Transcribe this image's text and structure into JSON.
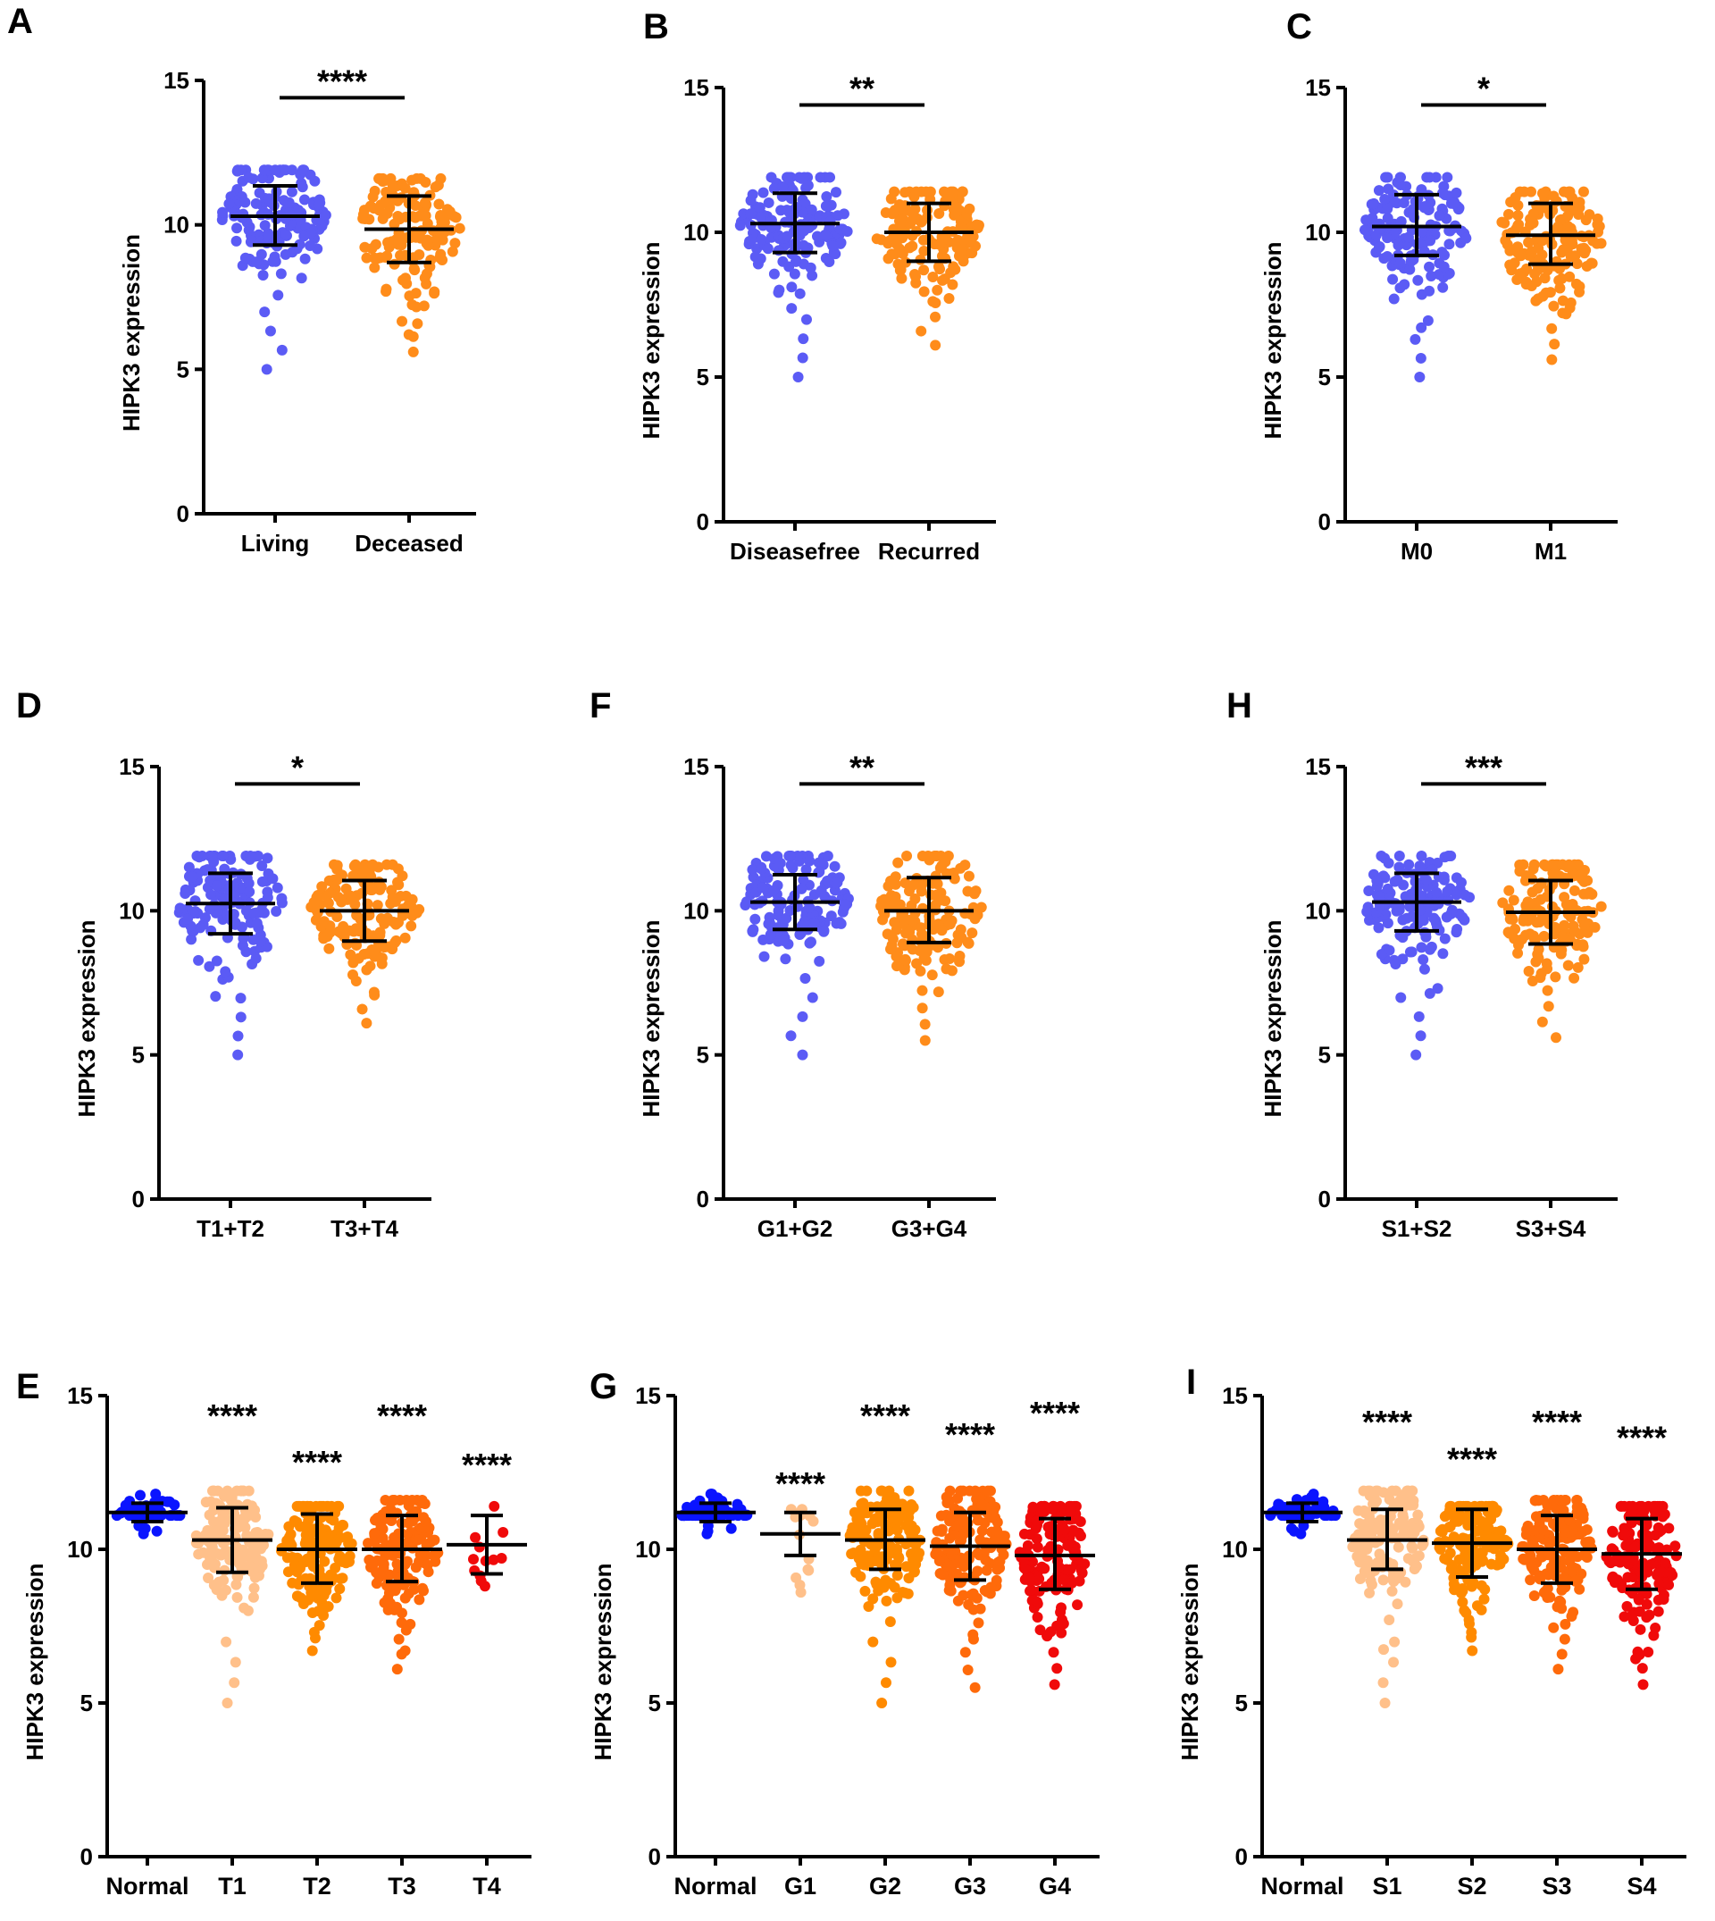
{
  "colors": {
    "blue_group": "#5b5bf5",
    "orange_group": "#ff8c1a",
    "normal": "#0a14ff",
    "light_orange": "#ffc08a",
    "mid_orange": "#ff8a00",
    "dark_orange": "#ff6a0a",
    "red": "#f00a0a",
    "axis": "#000000"
  },
  "chart_data": [
    {
      "id": "A",
      "panel_label": "A",
      "type": "scatter",
      "ylabel": "HIPK3 expression",
      "ylim": [
        0,
        15
      ],
      "yticks": [
        "0",
        "5",
        "10",
        "15"
      ],
      "categories": [
        "Living",
        "Deceased"
      ],
      "series": [
        {
          "name": "Living",
          "color": "blue_group",
          "mean": 10.3,
          "sd_low": 9.3,
          "sd_high": 11.35,
          "min": 5.0,
          "max": 11.9
        },
        {
          "name": "Deceased",
          "color": "orange_group",
          "mean": 9.85,
          "sd_low": 8.7,
          "sd_high": 11.0,
          "min": 5.6,
          "max": 11.6
        }
      ],
      "significance": [
        {
          "from": 0,
          "to": 1,
          "label": "****",
          "level": 14.4
        }
      ]
    },
    {
      "id": "B",
      "panel_label": "B",
      "type": "scatter",
      "ylabel": "HIPK3 expression",
      "ylim": [
        0,
        15
      ],
      "yticks": [
        "0",
        "5",
        "10",
        "15"
      ],
      "categories": [
        "Diseasefree",
        "Recurred"
      ],
      "series": [
        {
          "name": "Diseasefree",
          "color": "blue_group",
          "mean": 10.3,
          "sd_low": 9.3,
          "sd_high": 11.35,
          "min": 5.0,
          "max": 11.9
        },
        {
          "name": "Recurred",
          "color": "orange_group",
          "mean": 10.0,
          "sd_low": 9.0,
          "sd_high": 11.0,
          "min": 6.1,
          "max": 11.4
        }
      ],
      "significance": [
        {
          "from": 0,
          "to": 1,
          "label": "**",
          "level": 14.4
        }
      ]
    },
    {
      "id": "C",
      "panel_label": "C",
      "type": "scatter",
      "ylabel": "HIPK3 expression",
      "ylim": [
        0,
        15
      ],
      "yticks": [
        "0",
        "5",
        "10",
        "15"
      ],
      "categories": [
        "M0",
        "M1"
      ],
      "series": [
        {
          "name": "M0",
          "color": "blue_group",
          "mean": 10.2,
          "sd_low": 9.2,
          "sd_high": 11.3,
          "min": 5.0,
          "max": 11.9
        },
        {
          "name": "M1",
          "color": "orange_group",
          "mean": 9.9,
          "sd_low": 8.9,
          "sd_high": 11.0,
          "min": 5.6,
          "max": 11.4
        }
      ],
      "significance": [
        {
          "from": 0,
          "to": 1,
          "label": "*",
          "level": 14.4
        }
      ]
    },
    {
      "id": "D",
      "panel_label": "D",
      "type": "scatter",
      "ylabel": "HIPK3 expression",
      "ylim": [
        0,
        15
      ],
      "yticks": [
        "0",
        "5",
        "10",
        "15"
      ],
      "categories": [
        "T1+T2",
        "T3+T4"
      ],
      "series": [
        {
          "name": "T1+T2",
          "color": "blue_group",
          "mean": 10.25,
          "sd_low": 9.2,
          "sd_high": 11.3,
          "min": 5.0,
          "max": 11.9
        },
        {
          "name": "T3+T4",
          "color": "orange_group",
          "mean": 10.0,
          "sd_low": 8.95,
          "sd_high": 11.05,
          "min": 6.1,
          "max": 11.6
        }
      ],
      "significance": [
        {
          "from": 0,
          "to": 1,
          "label": "*",
          "level": 14.4
        }
      ]
    },
    {
      "id": "F",
      "panel_label": "F",
      "type": "scatter",
      "ylabel": "HIPK3 expression",
      "ylim": [
        0,
        15
      ],
      "yticks": [
        "0",
        "5",
        "10",
        "15"
      ],
      "categories": [
        "G1+G2",
        "G3+G4"
      ],
      "series": [
        {
          "name": "G1+G2",
          "color": "blue_group",
          "mean": 10.3,
          "sd_low": 9.35,
          "sd_high": 11.25,
          "min": 5.0,
          "max": 11.9
        },
        {
          "name": "G3+G4",
          "color": "orange_group",
          "mean": 10.0,
          "sd_low": 8.9,
          "sd_high": 11.15,
          "min": 5.5,
          "max": 11.9
        }
      ],
      "significance": [
        {
          "from": 0,
          "to": 1,
          "label": "**",
          "level": 14.4
        }
      ]
    },
    {
      "id": "H",
      "panel_label": "H",
      "type": "scatter",
      "ylabel": "HIPK3 expression",
      "ylim": [
        0,
        15
      ],
      "yticks": [
        "0",
        "5",
        "10",
        "15"
      ],
      "categories": [
        "S1+S2",
        "S3+S4"
      ],
      "series": [
        {
          "name": "S1+S2",
          "color": "blue_group",
          "mean": 10.3,
          "sd_low": 9.3,
          "sd_high": 11.3,
          "min": 5.0,
          "max": 11.9
        },
        {
          "name": "S3+S4",
          "color": "orange_group",
          "mean": 9.95,
          "sd_low": 8.85,
          "sd_high": 11.05,
          "min": 5.6,
          "max": 11.6
        }
      ],
      "significance": [
        {
          "from": 0,
          "to": 1,
          "label": "***",
          "level": 14.4
        }
      ]
    },
    {
      "id": "E",
      "panel_label": "E",
      "type": "scatter",
      "ylabel": "HIPK3 expression",
      "ylim": [
        0,
        15
      ],
      "yticks": [
        "0",
        "5",
        "10",
        "15"
      ],
      "categories": [
        "Normal",
        "T1",
        "T2",
        "T3",
        "T4"
      ],
      "series": [
        {
          "name": "Normal",
          "color": "normal",
          "mean": 11.2,
          "sd_low": 10.9,
          "sd_high": 11.5,
          "min": 10.5,
          "max": 11.8
        },
        {
          "name": "T1",
          "color": "light_orange",
          "mean": 10.3,
          "sd_low": 9.25,
          "sd_high": 11.35,
          "min": 5.0,
          "max": 11.9
        },
        {
          "name": "T2",
          "color": "mid_orange",
          "mean": 10.0,
          "sd_low": 8.9,
          "sd_high": 11.15,
          "min": 6.7,
          "max": 11.4
        },
        {
          "name": "T3",
          "color": "dark_orange",
          "mean": 10.0,
          "sd_low": 8.95,
          "sd_high": 11.1,
          "min": 6.1,
          "max": 11.6
        },
        {
          "name": "T4",
          "color": "red",
          "mean": 10.15,
          "sd_low": 9.2,
          "sd_high": 11.1,
          "min": 8.8,
          "max": 11.4
        }
      ],
      "significance": [
        {
          "at": 1,
          "label": "****",
          "level": 14.5
        },
        {
          "at": 2,
          "label": "****",
          "level": 13.0
        },
        {
          "at": 3,
          "label": "****",
          "level": 14.5
        },
        {
          "at": 4,
          "label": "****",
          "level": 12.9
        }
      ]
    },
    {
      "id": "G",
      "panel_label": "G",
      "type": "scatter",
      "ylabel": "HIPK3 expression",
      "ylim": [
        0,
        15
      ],
      "yticks": [
        "0",
        "5",
        "10",
        "15"
      ],
      "categories": [
        "Normal",
        "G1",
        "G2",
        "G3",
        "G4"
      ],
      "series": [
        {
          "name": "Normal",
          "color": "normal",
          "mean": 11.2,
          "sd_low": 10.9,
          "sd_high": 11.5,
          "min": 10.5,
          "max": 11.8
        },
        {
          "name": "G1",
          "color": "light_orange",
          "mean": 10.5,
          "sd_low": 9.8,
          "sd_high": 11.2,
          "min": 8.6,
          "max": 11.3
        },
        {
          "name": "G2",
          "color": "mid_orange",
          "mean": 10.3,
          "sd_low": 9.35,
          "sd_high": 11.3,
          "min": 5.0,
          "max": 11.9
        },
        {
          "name": "G3",
          "color": "dark_orange",
          "mean": 10.1,
          "sd_low": 9.0,
          "sd_high": 11.2,
          "min": 5.5,
          "max": 11.9
        },
        {
          "name": "G4",
          "color": "red",
          "mean": 9.8,
          "sd_low": 8.7,
          "sd_high": 11.0,
          "min": 5.6,
          "max": 11.4
        }
      ],
      "significance": [
        {
          "at": 1,
          "label": "****",
          "level": 12.3
        },
        {
          "at": 2,
          "label": "****",
          "level": 14.5
        },
        {
          "at": 3,
          "label": "****",
          "level": 13.9
        },
        {
          "at": 4,
          "label": "****",
          "level": 14.6
        }
      ]
    },
    {
      "id": "I",
      "panel_label": "I",
      "type": "scatter",
      "ylabel": "HIPK3 expression",
      "ylim": [
        0,
        15
      ],
      "yticks": [
        "0",
        "5",
        "10",
        "15"
      ],
      "categories": [
        "Normal",
        "S1",
        "S2",
        "S3",
        "S4"
      ],
      "series": [
        {
          "name": "Normal",
          "color": "normal",
          "mean": 11.2,
          "sd_low": 10.9,
          "sd_high": 11.5,
          "min": 10.5,
          "max": 11.8
        },
        {
          "name": "S1",
          "color": "light_orange",
          "mean": 10.3,
          "sd_low": 9.35,
          "sd_high": 11.3,
          "min": 5.0,
          "max": 11.9
        },
        {
          "name": "S2",
          "color": "mid_orange",
          "mean": 10.2,
          "sd_low": 9.1,
          "sd_high": 11.3,
          "min": 6.7,
          "max": 11.4
        },
        {
          "name": "S3",
          "color": "dark_orange",
          "mean": 10.0,
          "sd_low": 8.9,
          "sd_high": 11.1,
          "min": 6.1,
          "max": 11.6
        },
        {
          "name": "S4",
          "color": "red",
          "mean": 9.85,
          "sd_low": 8.7,
          "sd_high": 11.0,
          "min": 5.6,
          "max": 11.4
        }
      ],
      "significance": [
        {
          "at": 1,
          "label": "****",
          "level": 14.3
        },
        {
          "at": 2,
          "label": "****",
          "level": 13.1
        },
        {
          "at": 3,
          "label": "****",
          "level": 14.3
        },
        {
          "at": 4,
          "label": "****",
          "level": 13.8
        }
      ]
    }
  ]
}
